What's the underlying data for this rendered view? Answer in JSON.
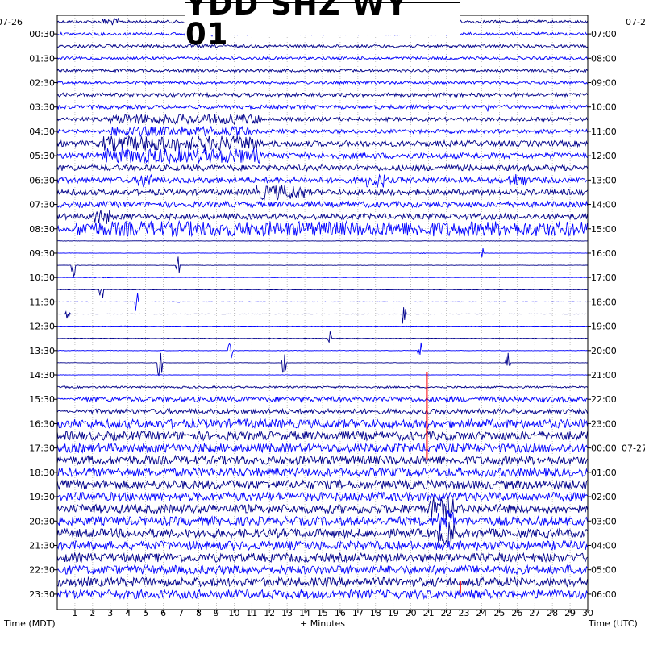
{
  "chart_data": {
    "type": "heatmap",
    "title": "YDD SHZ WY 01",
    "date_left": "07-26",
    "date_right_top": "07-2",
    "date_right_rollover": "07-27",
    "xlabel_left": "Time (MDT)",
    "xlabel_center": "+ Minutes",
    "xlabel_right": "Time (UTC)",
    "x_ticks": [
      "1",
      "2",
      "3",
      "4",
      "5",
      "6",
      "7",
      "8",
      "9",
      "10",
      "11",
      "12",
      "13",
      "14",
      "15",
      "16",
      "17",
      "18",
      "19",
      "20",
      "21",
      "22",
      "23",
      "24",
      "25",
      "26",
      "27",
      "28",
      "29",
      "30"
    ],
    "xlim": [
      0,
      30
    ],
    "left_hours": [
      "00:30",
      "01:30",
      "02:30",
      "03:30",
      "04:30",
      "05:30",
      "06:30",
      "07:30",
      "08:30",
      "09:30",
      "10:30",
      "11:30",
      "12:30",
      "13:30",
      "14:30",
      "15:30",
      "16:30",
      "17:30",
      "18:30",
      "19:30",
      "20:30",
      "21:30",
      "22:30",
      "23:30"
    ],
    "right_hours": [
      "07:00",
      "08:00",
      "09:00",
      "10:00",
      "11:00",
      "12:00",
      "13:00",
      "14:00",
      "15:00",
      "16:00",
      "17:00",
      "18:00",
      "19:00",
      "20:00",
      "21:00",
      "22:00",
      "23:00",
      "00:00",
      "01:00",
      "02:00",
      "03:00",
      "04:00",
      "05:00",
      "06:00"
    ],
    "trace_colors": [
      "#00008b",
      "#0000ff"
    ],
    "marker_color": "#ff0000",
    "grid": true,
    "traces_per_hour": 2
  }
}
